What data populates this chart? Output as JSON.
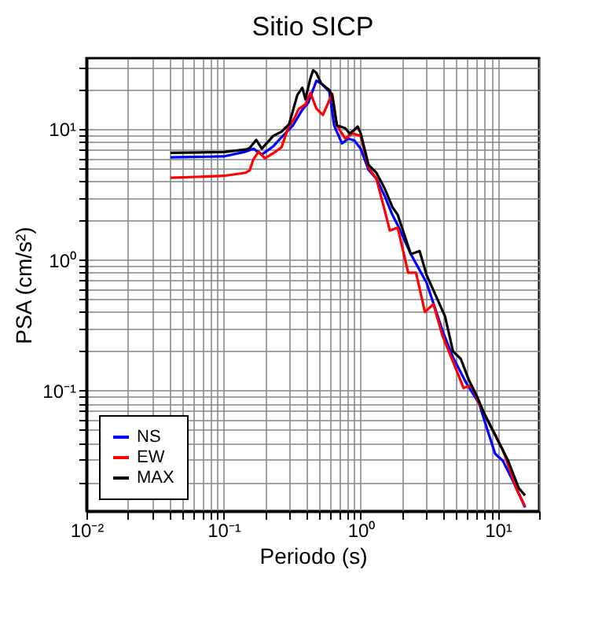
{
  "chart_data": {
    "type": "line",
    "title": "Sitio SICP",
    "xlabel": "Periodo (s)",
    "ylabel": "PSA (cm/s²)",
    "log": "xy",
    "grid": true,
    "legend": "bottom left",
    "xlim": [
      0.01,
      20
    ],
    "ylim": [
      0.012,
      35
    ],
    "xticks": [
      {
        "value": 0.01,
        "label": "10⁻²"
      },
      {
        "value": 0.02,
        "label": null
      },
      {
        "value": 0.03,
        "label": null
      },
      {
        "value": 0.04,
        "label": null
      },
      {
        "value": 0.05,
        "label": null
      },
      {
        "value": 0.06,
        "label": null
      },
      {
        "value": 0.07,
        "label": null
      },
      {
        "value": 0.08,
        "label": null
      },
      {
        "value": 0.09,
        "label": null
      },
      {
        "value": 0.1,
        "label": "10⁻¹"
      },
      {
        "value": 0.2,
        "label": null
      },
      {
        "value": 0.3,
        "label": null
      },
      {
        "value": 0.4,
        "label": null
      },
      {
        "value": 0.5,
        "label": null
      },
      {
        "value": 0.6,
        "label": null
      },
      {
        "value": 0.7,
        "label": null
      },
      {
        "value": 0.8,
        "label": null
      },
      {
        "value": 0.9,
        "label": null
      },
      {
        "value": 1,
        "label": "10⁰"
      },
      {
        "value": 2,
        "label": null
      },
      {
        "value": 3,
        "label": null
      },
      {
        "value": 4,
        "label": null
      },
      {
        "value": 5,
        "label": null
      },
      {
        "value": 6,
        "label": null
      },
      {
        "value": 7,
        "label": null
      },
      {
        "value": 8,
        "label": null
      },
      {
        "value": 9,
        "label": null
      },
      {
        "value": 10,
        "label": "10¹"
      },
      {
        "value": 20,
        "label": null
      }
    ],
    "yticks": [
      {
        "value": 0.02,
        "label": null
      },
      {
        "value": 0.03,
        "label": null
      },
      {
        "value": 0.04,
        "label": null
      },
      {
        "value": 0.05,
        "label": null
      },
      {
        "value": 0.06,
        "label": null
      },
      {
        "value": 0.07,
        "label": null
      },
      {
        "value": 0.08,
        "label": null
      },
      {
        "value": 0.09,
        "label": null
      },
      {
        "value": 0.1,
        "label": "10⁻¹"
      },
      {
        "value": 0.2,
        "label": null
      },
      {
        "value": 0.3,
        "label": null
      },
      {
        "value": 0.4,
        "label": null
      },
      {
        "value": 0.5,
        "label": null
      },
      {
        "value": 0.6,
        "label": null
      },
      {
        "value": 0.7,
        "label": null
      },
      {
        "value": 0.8,
        "label": null
      },
      {
        "value": 0.9,
        "label": null
      },
      {
        "value": 1,
        "label": "10⁰"
      },
      {
        "value": 2,
        "label": null
      },
      {
        "value": 3,
        "label": null
      },
      {
        "value": 4,
        "label": null
      },
      {
        "value": 5,
        "label": null
      },
      {
        "value": 6,
        "label": null
      },
      {
        "value": 7,
        "label": null
      },
      {
        "value": 8,
        "label": null
      },
      {
        "value": 9,
        "label": null
      },
      {
        "value": 10,
        "label": "10¹"
      },
      {
        "value": 20,
        "label": null
      },
      {
        "value": 30,
        "label": null
      }
    ],
    "series": [
      {
        "name": "NS",
        "color": "#0000ff",
        "x": [
          0.041,
          0.1,
          0.145,
          0.165,
          0.19,
          0.23,
          0.265,
          0.32,
          0.375,
          0.415,
          0.475,
          0.515,
          0.59,
          0.64,
          0.73,
          0.81,
          0.9,
          1.0,
          1.14,
          1.3,
          1.5,
          1.7,
          1.86,
          2.32,
          3.02,
          3.94,
          4.71,
          5.87,
          7.3,
          8.4,
          9.55,
          10.9,
          13,
          15.8
        ],
        "values": [
          6.1,
          6.2,
          6.75,
          7.1,
          6.4,
          7.4,
          8.7,
          10.7,
          14.1,
          16,
          23.5,
          22.4,
          19.5,
          10.7,
          7.8,
          8.5,
          8.2,
          7.1,
          4.9,
          4.2,
          3.07,
          2.22,
          1.85,
          1.11,
          0.67,
          0.29,
          0.18,
          0.115,
          0.08,
          0.05,
          0.033,
          0.029,
          0.02,
          0.0128
        ]
      },
      {
        "name": "EW",
        "color": "#ff0000",
        "x": [
          0.041,
          0.1,
          0.145,
          0.155,
          0.165,
          0.18,
          0.2,
          0.24,
          0.265,
          0.295,
          0.33,
          0.355,
          0.395,
          0.43,
          0.475,
          0.53,
          0.62,
          0.67,
          0.77,
          0.87,
          1.0,
          1.14,
          1.3,
          1.49,
          1.63,
          1.86,
          2.22,
          2.53,
          2.94,
          3.39,
          3.94,
          4.71,
          5.62,
          6.4,
          7.3,
          8.75,
          10.9,
          13.6,
          15.8
        ],
        "values": [
          4.25,
          4.4,
          4.65,
          4.85,
          5.9,
          6.75,
          6.0,
          6.75,
          7.3,
          10.2,
          12.3,
          14.4,
          15.5,
          19,
          14.4,
          12.9,
          18.7,
          10.7,
          8.5,
          9.3,
          8.9,
          5.1,
          4.2,
          2.44,
          1.68,
          1.77,
          0.8,
          0.8,
          0.4,
          0.46,
          0.265,
          0.167,
          0.105,
          0.11,
          0.08,
          0.055,
          0.035,
          0.018,
          0.013
        ]
      },
      {
        "name": "MAX",
        "color": "#000000",
        "x": [
          0.041,
          0.1,
          0.145,
          0.155,
          0.173,
          0.19,
          0.23,
          0.265,
          0.3,
          0.345,
          0.375,
          0.395,
          0.43,
          0.45,
          0.475,
          0.515,
          0.59,
          0.62,
          0.67,
          0.77,
          0.83,
          0.9,
          0.95,
          1.0,
          1.14,
          1.3,
          1.5,
          1.7,
          1.86,
          2.32,
          2.69,
          3.02,
          3.6,
          4.12,
          4.71,
          5.37,
          6.14,
          7.0,
          8.0,
          9.55,
          11.9,
          14.2,
          15.8
        ],
        "values": [
          6.6,
          6.7,
          7.0,
          7.2,
          8.3,
          7.1,
          8.9,
          9.6,
          10.9,
          18.3,
          20.8,
          17,
          24.6,
          28.3,
          27,
          22.4,
          20,
          18,
          10.7,
          10.2,
          9.3,
          9.9,
          10.5,
          9.3,
          5.35,
          4.65,
          3.5,
          2.55,
          2.22,
          1.11,
          1.17,
          0.77,
          0.51,
          0.37,
          0.2,
          0.175,
          0.121,
          0.092,
          0.066,
          0.046,
          0.029,
          0.018,
          0.0158
        ]
      }
    ]
  }
}
